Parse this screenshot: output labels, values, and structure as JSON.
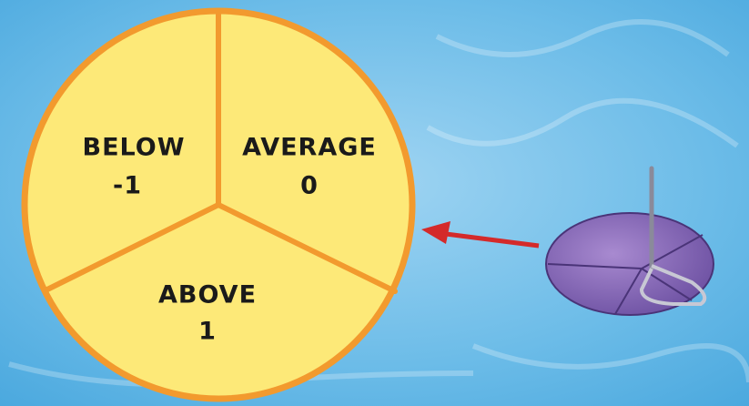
{
  "sectors": [
    {
      "label": "BELOW",
      "value": -1
    },
    {
      "label": "AVERAGE",
      "value": 0
    },
    {
      "label": "ABOVE",
      "value": 1
    }
  ]
}
